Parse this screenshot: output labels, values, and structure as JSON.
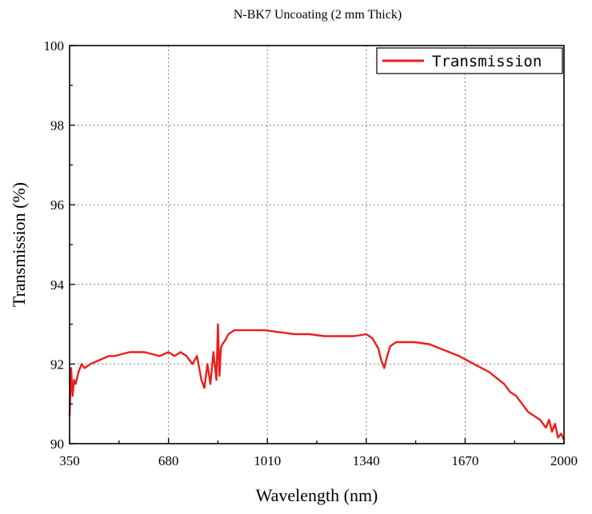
{
  "chart_data": {
    "type": "line",
    "title": "N-BK7 Uncoating (2 mm  Thick)",
    "xlabel": "Wavelength (nm)",
    "ylabel": "Transmission (%)",
    "xlim": [
      350,
      2000
    ],
    "ylim": [
      90,
      100
    ],
    "x_ticks": [
      350,
      680,
      1010,
      1340,
      1670,
      2000
    ],
    "y_ticks": [
      90,
      92,
      94,
      96,
      98,
      100
    ],
    "grid": true,
    "legend_position": "top-right",
    "colors": {
      "series": "#ee1c1c",
      "grid": "#7f7f7f",
      "axis": "#000000"
    },
    "series": [
      {
        "name": "Transmission",
        "x": [
          350,
          355,
          360,
          365,
          370,
          380,
          390,
          400,
          420,
          450,
          480,
          500,
          550,
          600,
          650,
          680,
          700,
          720,
          740,
          760,
          775,
          790,
          800,
          810,
          820,
          830,
          840,
          845,
          850,
          855,
          860,
          870,
          880,
          900,
          950,
          1000,
          1050,
          1100,
          1150,
          1200,
          1250,
          1300,
          1340,
          1360,
          1380,
          1390,
          1400,
          1410,
          1420,
          1430,
          1440,
          1450,
          1470,
          1500,
          1550,
          1600,
          1650,
          1700,
          1750,
          1800,
          1820,
          1840,
          1860,
          1880,
          1900,
          1920,
          1940,
          1950,
          1960,
          1970,
          1980,
          1990,
          2000
        ],
        "y": [
          90.7,
          91.9,
          91.2,
          91.6,
          91.5,
          91.8,
          92.0,
          91.9,
          92.0,
          92.1,
          92.2,
          92.2,
          92.3,
          92.3,
          92.2,
          92.3,
          92.2,
          92.3,
          92.2,
          92.0,
          92.2,
          91.6,
          91.4,
          92.0,
          91.5,
          92.3,
          91.6,
          93.0,
          91.7,
          92.4,
          92.5,
          92.6,
          92.75,
          92.85,
          92.85,
          92.85,
          92.8,
          92.75,
          92.75,
          92.7,
          92.7,
          92.7,
          92.75,
          92.65,
          92.4,
          92.1,
          91.9,
          92.2,
          92.45,
          92.5,
          92.55,
          92.55,
          92.55,
          92.55,
          92.5,
          92.35,
          92.2,
          92.0,
          91.8,
          91.5,
          91.3,
          91.2,
          91.0,
          90.8,
          90.7,
          90.6,
          90.4,
          90.6,
          90.3,
          90.5,
          90.15,
          90.25,
          90.1
        ]
      }
    ]
  }
}
